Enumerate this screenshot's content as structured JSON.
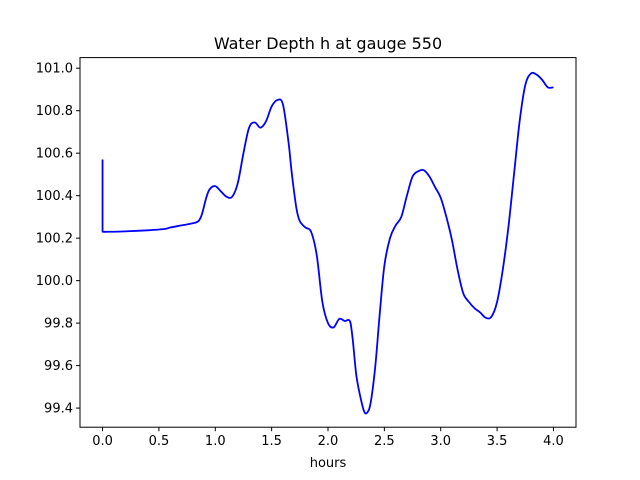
{
  "chart_data": {
    "type": "line",
    "title": "Water Depth h at gauge 550",
    "xlabel": "hours",
    "ylabel": "",
    "xlim": [
      -0.2,
      4.2
    ],
    "ylim": [
      99.31,
      101.05
    ],
    "xticks": [
      0.0,
      0.5,
      1.0,
      1.5,
      2.0,
      2.5,
      3.0,
      3.5,
      4.0
    ],
    "xtick_labels": [
      "0.0",
      "0.5",
      "1.0",
      "1.5",
      "2.0",
      "2.5",
      "3.0",
      "3.5",
      "4.0"
    ],
    "yticks": [
      99.4,
      99.6,
      99.8,
      100.0,
      100.2,
      100.4,
      100.6,
      100.8,
      101.0
    ],
    "ytick_labels": [
      "99.4",
      "99.6",
      "99.8",
      "100.0",
      "100.2",
      "100.4",
      "100.6",
      "100.8",
      "101.0"
    ],
    "grid": false,
    "series": [
      {
        "color": "#0000ff",
        "x": [
          0.0,
          0.0,
          0.05,
          0.2,
          0.4,
          0.55,
          0.6,
          0.7,
          0.8,
          0.85,
          0.88,
          0.92,
          0.95,
          1.0,
          1.05,
          1.1,
          1.15,
          1.2,
          1.25,
          1.3,
          1.35,
          1.4,
          1.45,
          1.5,
          1.55,
          1.6,
          1.65,
          1.68,
          1.72,
          1.75,
          1.8,
          1.85,
          1.9,
          1.95,
          2.0,
          2.05,
          2.1,
          2.15,
          2.18,
          2.2,
          2.22,
          2.25,
          2.28,
          2.32,
          2.35,
          2.38,
          2.42,
          2.46,
          2.5,
          2.55,
          2.6,
          2.65,
          2.7,
          2.75,
          2.8,
          2.85,
          2.9,
          2.95,
          3.0,
          3.05,
          3.1,
          3.15,
          3.2,
          3.25,
          3.3,
          3.35,
          3.4,
          3.45,
          3.5,
          3.55,
          3.6,
          3.65,
          3.7,
          3.75,
          3.8,
          3.85,
          3.9,
          3.95,
          4.0
        ],
        "y": [
          100.57,
          100.23,
          100.23,
          100.232,
          100.237,
          100.243,
          100.25,
          100.26,
          100.27,
          100.28,
          100.31,
          100.39,
          100.43,
          100.445,
          100.42,
          100.395,
          100.395,
          100.46,
          100.6,
          100.72,
          100.745,
          100.72,
          100.75,
          100.82,
          100.85,
          100.83,
          100.65,
          100.5,
          100.34,
          100.28,
          100.25,
          100.23,
          100.12,
          99.9,
          99.8,
          99.78,
          99.82,
          99.81,
          99.815,
          99.8,
          99.72,
          99.56,
          99.47,
          99.385,
          99.38,
          99.43,
          99.6,
          99.85,
          100.07,
          100.2,
          100.26,
          100.3,
          100.4,
          100.49,
          100.515,
          100.52,
          100.49,
          100.44,
          100.39,
          100.3,
          100.19,
          100.05,
          99.94,
          99.9,
          99.87,
          99.85,
          99.825,
          99.83,
          99.9,
          100.05,
          100.25,
          100.5,
          100.75,
          100.92,
          100.975,
          100.97,
          100.945,
          100.91,
          100.91
        ]
      }
    ]
  }
}
